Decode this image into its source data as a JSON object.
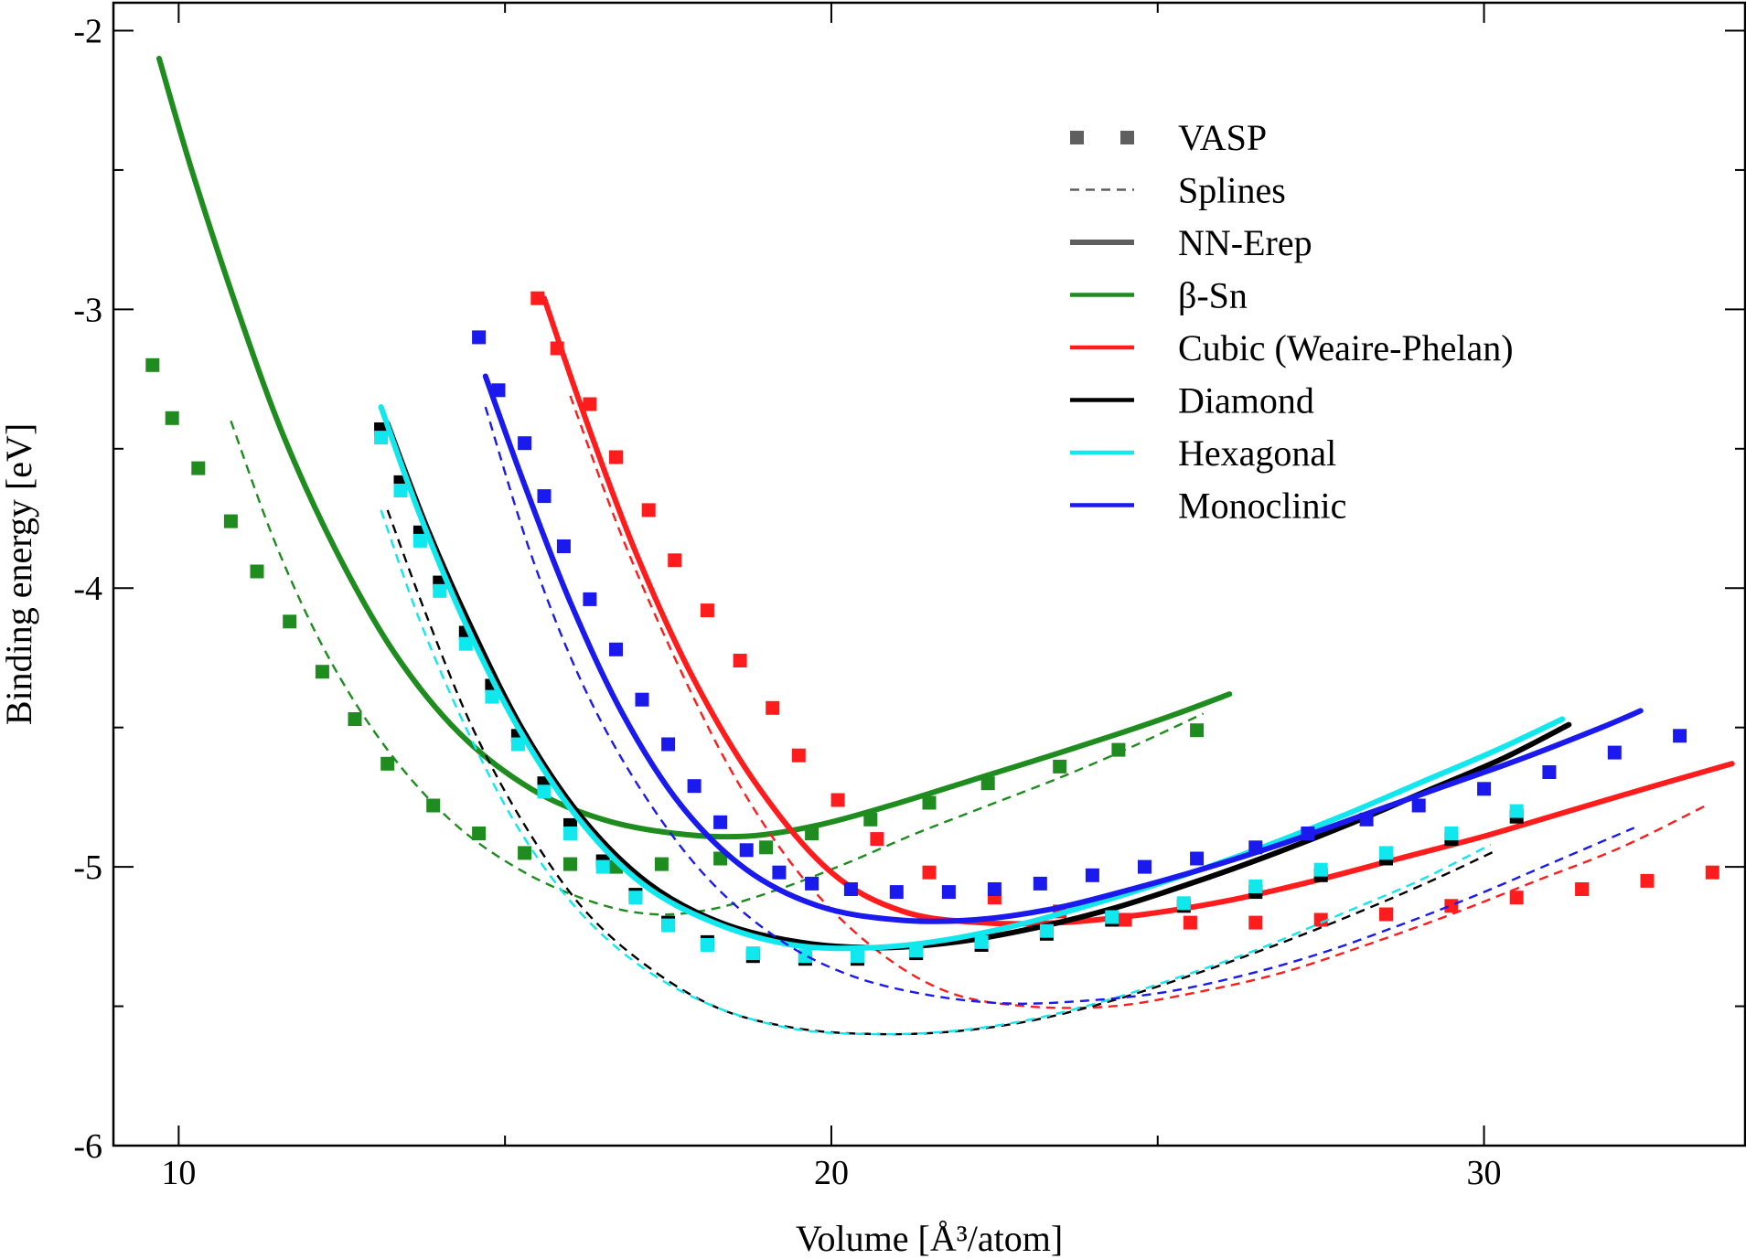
{
  "chart_data": {
    "type": "scatter",
    "title": "",
    "xlabel": "Volume [Å³/atom]",
    "ylabel": "Binding energy [eV]",
    "xlim": [
      9.0,
      34.0
    ],
    "ylim": [
      -6,
      -1.9
    ],
    "xticks": [
      10,
      20,
      30
    ],
    "xtick_labels": [
      "10",
      "20",
      "30"
    ],
    "yticks": [
      -2,
      -3,
      -4,
      -5,
      -6
    ],
    "ytick_labels": [
      "-2",
      "-3",
      "-4",
      "-5",
      "-6"
    ],
    "grid": false,
    "legend_position": "top-right",
    "legend": [
      {
        "label": "VASP",
        "style": "markers",
        "color": "#5f5f5f"
      },
      {
        "label": "Splines",
        "style": "dashed",
        "color": "#5f5f5f"
      },
      {
        "label": "NN-Erep",
        "style": "thick",
        "color": "#5f5f5f"
      },
      {
        "label": "β-Sn",
        "style": "line",
        "color": "#1e8c1e"
      },
      {
        "label": "Cubic (Weaire-Phelan)",
        "style": "line",
        "color": "#ff1c1c"
      },
      {
        "label": "Diamond",
        "style": "line",
        "color": "#000000"
      },
      {
        "label": "Hexagonal",
        "style": "line",
        "color": "#10e8ee"
      },
      {
        "label": "Monoclinic",
        "style": "line",
        "color": "#1a1aee"
      }
    ],
    "series": [
      {
        "name": "β-Sn",
        "color": "#1e8c1e",
        "vasp": {
          "x": [
            9.6,
            9.9,
            10.3,
            10.8,
            11.2,
            11.7,
            12.2,
            12.7,
            13.2,
            13.9,
            14.6,
            15.3,
            16.0,
            16.7,
            17.4,
            18.3,
            19.0,
            19.7,
            20.6,
            21.5,
            22.4,
            23.5,
            24.4,
            25.6
          ],
          "y": [
            -3.2,
            -3.39,
            -3.57,
            -3.76,
            -3.94,
            -4.12,
            -4.3,
            -4.47,
            -4.63,
            -4.78,
            -4.88,
            -4.95,
            -4.99,
            -5.0,
            -4.99,
            -4.97,
            -4.93,
            -4.88,
            -4.83,
            -4.77,
            -4.7,
            -4.64,
            -4.58,
            -4.51
          ]
        },
        "splines": {
          "x": [
            10.8,
            11.5,
            12.3,
            13.2,
            14.2,
            15.3,
            16.4,
            17.3,
            18.2,
            19.2,
            20.2,
            21.3,
            22.4,
            23.5,
            24.6,
            25.7
          ],
          "y": [
            -3.4,
            -3.85,
            -4.25,
            -4.58,
            -4.84,
            -5.02,
            -5.13,
            -5.17,
            -5.15,
            -5.08,
            -4.99,
            -4.88,
            -4.78,
            -4.68,
            -4.57,
            -4.45
          ]
        },
        "nn_erep": {
          "x": [
            9.7,
            10.2,
            10.9,
            11.6,
            12.4,
            13.3,
            14.3,
            15.4,
            16.5,
            17.6,
            18.7,
            19.8,
            20.9,
            22.0,
            23.1,
            24.3,
            25.3,
            26.1
          ],
          "y": [
            -2.1,
            -2.5,
            -3.0,
            -3.45,
            -3.86,
            -4.23,
            -4.52,
            -4.72,
            -4.83,
            -4.88,
            -4.89,
            -4.85,
            -4.78,
            -4.7,
            -4.62,
            -4.53,
            -4.45,
            -4.38
          ]
        }
      },
      {
        "name": "Cubic (Weaire-Phelan)",
        "color": "#ff1c1c",
        "vasp": {
          "x": [
            15.5,
            15.8,
            16.3,
            16.7,
            17.2,
            17.6,
            18.1,
            18.6,
            19.1,
            19.5,
            20.1,
            20.7,
            21.5,
            22.5,
            23.5,
            24.5,
            25.5,
            26.5,
            27.5,
            28.5,
            29.5,
            30.5,
            31.5,
            32.5,
            33.5
          ],
          "y": [
            -2.96,
            -3.14,
            -3.34,
            -3.53,
            -3.72,
            -3.9,
            -4.08,
            -4.26,
            -4.43,
            -4.6,
            -4.76,
            -4.9,
            -5.02,
            -5.11,
            -5.16,
            -5.19,
            -5.2,
            -5.2,
            -5.19,
            -5.17,
            -5.14,
            -5.11,
            -5.08,
            -5.05,
            -5.02
          ]
        },
        "splines": {
          "x": [
            16.0,
            16.8,
            17.7,
            18.6,
            19.6,
            20.7,
            21.8,
            23.0,
            24.3,
            25.6,
            26.9,
            28.2,
            29.5,
            30.8,
            32.1,
            33.4
          ],
          "y": [
            -3.31,
            -3.82,
            -4.3,
            -4.71,
            -5.05,
            -5.3,
            -5.45,
            -5.5,
            -5.5,
            -5.45,
            -5.38,
            -5.28,
            -5.17,
            -5.05,
            -4.93,
            -4.78
          ]
        },
        "nn_erep": {
          "x": [
            15.6,
            16.2,
            17.0,
            17.9,
            18.9,
            20.0,
            21.1,
            22.3,
            23.5,
            24.8,
            26.1,
            27.4,
            28.7,
            30.0,
            31.3,
            32.6,
            33.8
          ],
          "y": [
            -2.96,
            -3.37,
            -3.87,
            -4.33,
            -4.72,
            -5.02,
            -5.16,
            -5.2,
            -5.2,
            -5.17,
            -5.12,
            -5.05,
            -4.97,
            -4.89,
            -4.8,
            -4.71,
            -4.63
          ]
        }
      },
      {
        "name": "Diamond",
        "color": "#000000",
        "vasp": {
          "x": [
            13.1,
            13.4,
            13.7,
            14.0,
            14.4,
            14.8,
            15.2,
            15.6,
            16.0,
            16.5,
            17.0,
            17.5,
            18.1,
            18.8,
            19.6,
            20.4,
            21.3,
            22.3,
            23.3,
            24.3,
            25.4,
            26.5,
            27.5,
            28.5,
            29.5,
            30.5
          ],
          "y": [
            -3.43,
            -3.62,
            -3.8,
            -3.98,
            -4.16,
            -4.35,
            -4.53,
            -4.7,
            -4.85,
            -4.98,
            -5.1,
            -5.2,
            -5.27,
            -5.32,
            -5.33,
            -5.33,
            -5.31,
            -5.28,
            -5.24,
            -5.19,
            -5.14,
            -5.09,
            -5.03,
            -4.97,
            -4.9,
            -4.82
          ]
        },
        "splines": {
          "x": [
            13.2,
            13.8,
            14.5,
            15.3,
            16.2,
            17.2,
            18.3,
            19.5,
            20.7,
            21.9,
            23.1,
            24.3,
            25.5,
            26.7,
            27.9,
            29.1,
            30.2
          ],
          "y": [
            -3.72,
            -4.1,
            -4.5,
            -4.85,
            -5.15,
            -5.36,
            -5.51,
            -5.58,
            -5.6,
            -5.59,
            -5.55,
            -5.48,
            -5.39,
            -5.29,
            -5.18,
            -5.06,
            -4.94
          ]
        },
        "nn_erep": {
          "x": [
            13.2,
            13.8,
            14.5,
            15.3,
            16.2,
            17.2,
            18.3,
            19.5,
            20.7,
            21.9,
            23.1,
            24.3,
            25.5,
            26.7,
            27.9,
            29.1,
            30.3,
            31.3
          ],
          "y": [
            -3.41,
            -3.78,
            -4.15,
            -4.52,
            -4.83,
            -5.06,
            -5.2,
            -5.27,
            -5.29,
            -5.27,
            -5.22,
            -5.15,
            -5.06,
            -4.96,
            -4.85,
            -4.73,
            -4.61,
            -4.49
          ]
        }
      },
      {
        "name": "Hexagonal",
        "color": "#10e8ee",
        "vasp": {
          "x": [
            13.1,
            13.4,
            13.7,
            14.0,
            14.4,
            14.8,
            15.2,
            15.6,
            16.0,
            16.5,
            17.0,
            17.5,
            18.1,
            18.8,
            19.6,
            20.4,
            21.3,
            22.3,
            23.3,
            24.3,
            25.4,
            26.5,
            27.5,
            28.5,
            29.5,
            30.5
          ],
          "y": [
            -3.46,
            -3.65,
            -3.83,
            -4.01,
            -4.2,
            -4.39,
            -4.56,
            -4.73,
            -4.88,
            -5.0,
            -5.11,
            -5.21,
            -5.28,
            -5.31,
            -5.32,
            -5.32,
            -5.3,
            -5.27,
            -5.23,
            -5.18,
            -5.13,
            -5.07,
            -5.01,
            -4.95,
            -4.88,
            -4.8
          ]
        },
        "splines": {
          "x": [
            13.1,
            13.7,
            14.4,
            15.2,
            16.1,
            17.1,
            18.2,
            19.4,
            20.6,
            21.8,
            23.0,
            24.2,
            25.4,
            26.6,
            27.8,
            29.0,
            30.1
          ],
          "y": [
            -3.72,
            -4.12,
            -4.5,
            -4.86,
            -5.15,
            -5.36,
            -5.5,
            -5.58,
            -5.6,
            -5.59,
            -5.55,
            -5.48,
            -5.39,
            -5.29,
            -5.17,
            -5.05,
            -4.92
          ]
        },
        "nn_erep": {
          "x": [
            13.1,
            13.7,
            14.4,
            15.2,
            16.1,
            17.1,
            18.2,
            19.4,
            20.6,
            21.8,
            23.0,
            24.2,
            25.4,
            26.6,
            27.8,
            29.0,
            30.2,
            31.2
          ],
          "y": [
            -3.35,
            -3.74,
            -4.13,
            -4.5,
            -4.82,
            -5.06,
            -5.2,
            -5.28,
            -5.29,
            -5.26,
            -5.2,
            -5.12,
            -5.03,
            -4.93,
            -4.82,
            -4.7,
            -4.58,
            -4.47
          ]
        }
      },
      {
        "name": "Monoclinic",
        "color": "#1a1aee",
        "vasp": {
          "x": [
            14.6,
            14.9,
            15.3,
            15.6,
            15.9,
            16.3,
            16.7,
            17.1,
            17.5,
            17.9,
            18.3,
            18.7,
            19.2,
            19.7,
            20.3,
            21.0,
            21.8,
            22.5,
            23.2,
            24.0,
            24.8,
            25.6,
            26.5,
            27.3,
            28.2,
            29.0,
            30.0,
            31.0,
            32.0,
            33.0
          ],
          "y": [
            -3.1,
            -3.29,
            -3.48,
            -3.67,
            -3.85,
            -4.04,
            -4.22,
            -4.4,
            -4.56,
            -4.71,
            -4.84,
            -4.94,
            -5.02,
            -5.06,
            -5.08,
            -5.09,
            -5.09,
            -5.08,
            -5.06,
            -5.03,
            -5.0,
            -4.97,
            -4.93,
            -4.88,
            -4.83,
            -4.78,
            -4.72,
            -4.66,
            -4.59,
            -4.53
          ]
        },
        "splines": {
          "x": [
            14.7,
            15.4,
            16.2,
            17.1,
            18.1,
            19.2,
            20.3,
            21.5,
            22.7,
            23.9,
            25.1,
            26.3,
            27.5,
            28.7,
            29.9,
            31.1,
            32.3
          ],
          "y": [
            -3.35,
            -3.88,
            -4.35,
            -4.73,
            -5.04,
            -5.26,
            -5.39,
            -5.46,
            -5.49,
            -5.48,
            -5.45,
            -5.39,
            -5.31,
            -5.21,
            -5.1,
            -4.98,
            -4.86
          ]
        },
        "nn_erep": {
          "x": [
            14.7,
            15.3,
            16.0,
            16.8,
            17.7,
            18.7,
            19.8,
            21.0,
            22.2,
            23.4,
            24.6,
            25.8,
            27.0,
            28.2,
            29.4,
            30.6,
            31.8,
            32.4
          ],
          "y": [
            -3.24,
            -3.63,
            -4.05,
            -4.45,
            -4.78,
            -5.01,
            -5.14,
            -5.19,
            -5.19,
            -5.15,
            -5.08,
            -5.0,
            -4.91,
            -4.81,
            -4.71,
            -4.61,
            -4.5,
            -4.44
          ]
        }
      }
    ]
  }
}
